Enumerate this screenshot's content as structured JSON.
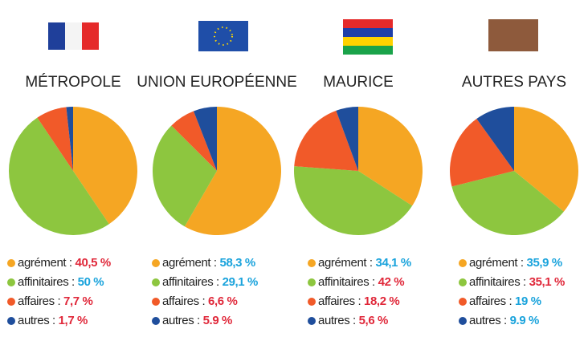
{
  "chart_data": [
    {
      "type": "pie",
      "title": "MÉTROPOLE",
      "categories": [
        "agrément :",
        "affinitaires :",
        "affaires :",
        "autres :"
      ],
      "values": [
        40.5,
        50,
        7.7,
        1.7
      ],
      "value_labels": [
        "40,5 %",
        "50 %",
        "7,7 %",
        "1,7 %"
      ],
      "colors": [
        "#f5a623",
        "#8dc63f",
        "#f15a29",
        "#1f4e9c"
      ],
      "value_label_colors": [
        "#e0283a",
        "#1aa3dc",
        "#e0283a",
        "#e0283a"
      ]
    },
    {
      "type": "pie",
      "title": "UNION EUROPÉENNE",
      "categories": [
        "agrément :",
        "affinitaires :",
        "affaires :",
        "autres :"
      ],
      "values": [
        58.3,
        29.1,
        6.6,
        5.9
      ],
      "value_labels": [
        "58,3 %",
        "29,1 %",
        "6,6 %",
        "5.9 %"
      ],
      "colors": [
        "#f5a623",
        "#8dc63f",
        "#f15a29",
        "#1f4e9c"
      ],
      "value_label_colors": [
        "#1aa3dc",
        "#1aa3dc",
        "#e0283a",
        "#e0283a"
      ]
    },
    {
      "type": "pie",
      "title": "MAURICE",
      "categories": [
        "agrément :",
        "affinitaires :",
        "affaires :",
        "autres :"
      ],
      "values": [
        34.1,
        42,
        18.2,
        5.6
      ],
      "value_labels": [
        "34,1 %",
        "42 %",
        "18,2 %",
        "5,6 %"
      ],
      "colors": [
        "#f5a623",
        "#8dc63f",
        "#f15a29",
        "#1f4e9c"
      ],
      "value_label_colors": [
        "#1aa3dc",
        "#e0283a",
        "#e0283a",
        "#e0283a"
      ]
    },
    {
      "type": "pie",
      "title": "AUTRES PAYS",
      "categories": [
        "agrément :",
        "affinitaires :",
        "affaires :",
        "autres :"
      ],
      "values": [
        35.9,
        35.1,
        19,
        9.9
      ],
      "value_labels": [
        "35,9 %",
        "35,1 %",
        "19 %",
        "9.9 %"
      ],
      "colors": [
        "#f5a623",
        "#8dc63f",
        "#f15a29",
        "#1f4e9c"
      ],
      "value_label_colors": [
        "#1aa3dc",
        "#e0283a",
        "#1aa3dc",
        "#1aa3dc"
      ]
    }
  ]
}
